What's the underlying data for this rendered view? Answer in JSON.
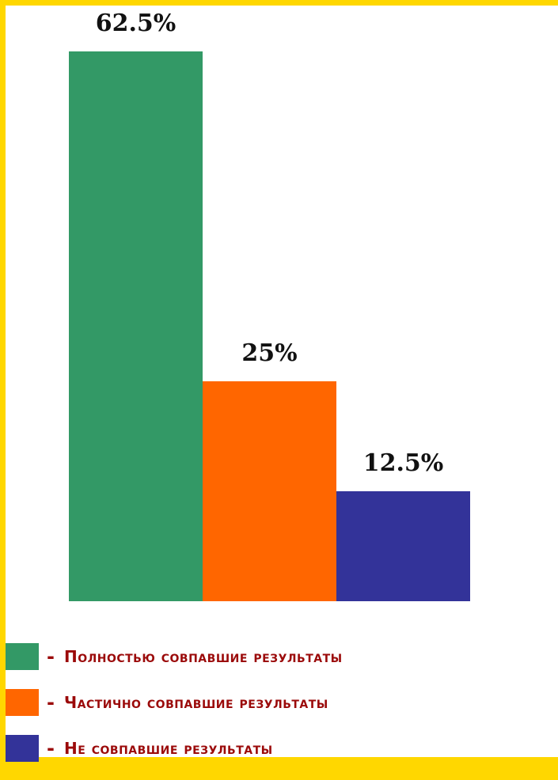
{
  "chart_data": {
    "type": "bar",
    "categories": [
      "Полностью совпавшие результаты",
      "Частично совпавшие результаты",
      "Не совпавшие результаты"
    ],
    "values": [
      62.5,
      25,
      12.5
    ],
    "data_labels": [
      "62.5%",
      "25%",
      "12.5%"
    ],
    "colors": [
      "#339966",
      "#FF6600",
      "#333399"
    ],
    "title": "",
    "xlabel": "",
    "ylabel": "",
    "ylim": [
      0,
      62.5
    ],
    "grid": false,
    "legend_position": "bottom"
  },
  "legend": {
    "dash": "-",
    "items": [
      {
        "label": "Полностью совпавшие результаты",
        "color": "#339966"
      },
      {
        "label": "Частично совпавшие результаты",
        "color": "#FF6600"
      },
      {
        "label": "Не совпавшие результаты",
        "color": "#333399"
      }
    ]
  }
}
